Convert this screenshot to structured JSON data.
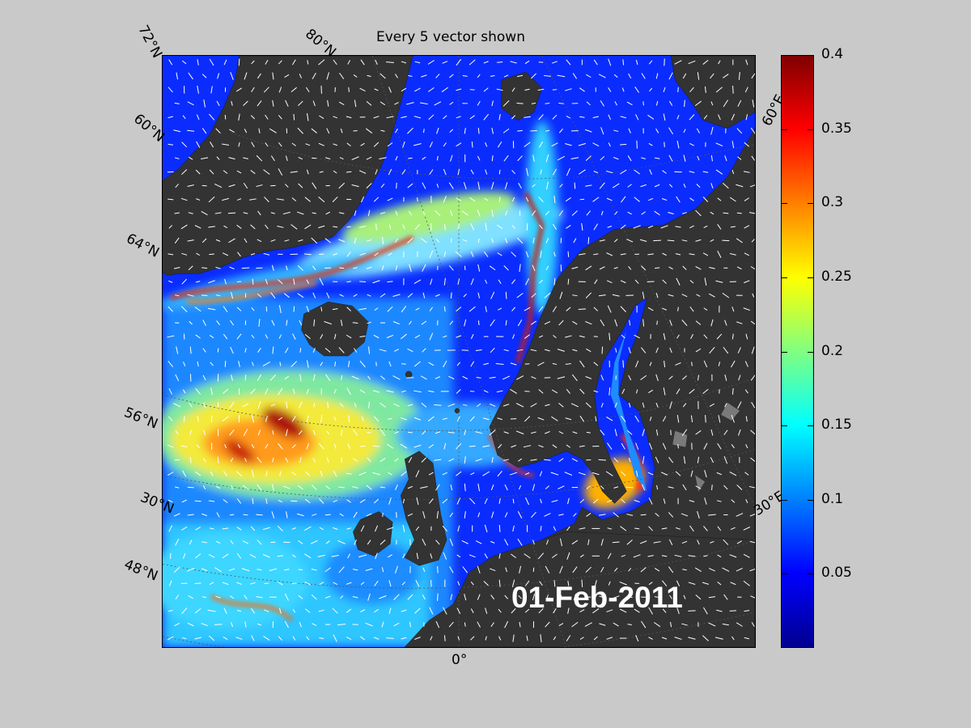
{
  "title": "Every 5 vector shown",
  "date": "01-Feb-2011",
  "lat_labels": [
    "72°N",
    "80°N",
    "60°N",
    "64°N",
    "56°N",
    "30°N",
    "48°N"
  ],
  "lon_labels": [
    "60°E",
    "30°E",
    "0°"
  ],
  "colorbar": {
    "ticks": [
      "0.4",
      "0.35",
      "0.3",
      "0.25",
      "0.2",
      "0.15",
      "0.1",
      "0.05"
    ],
    "range": [
      0,
      0.4
    ],
    "colormap": "jet"
  },
  "colors": {
    "background": "#c9c9c9",
    "land": "#333333",
    "land_ice": "#7a7a7a",
    "vector": "#ffffff",
    "date_text": "#ffffff"
  }
}
